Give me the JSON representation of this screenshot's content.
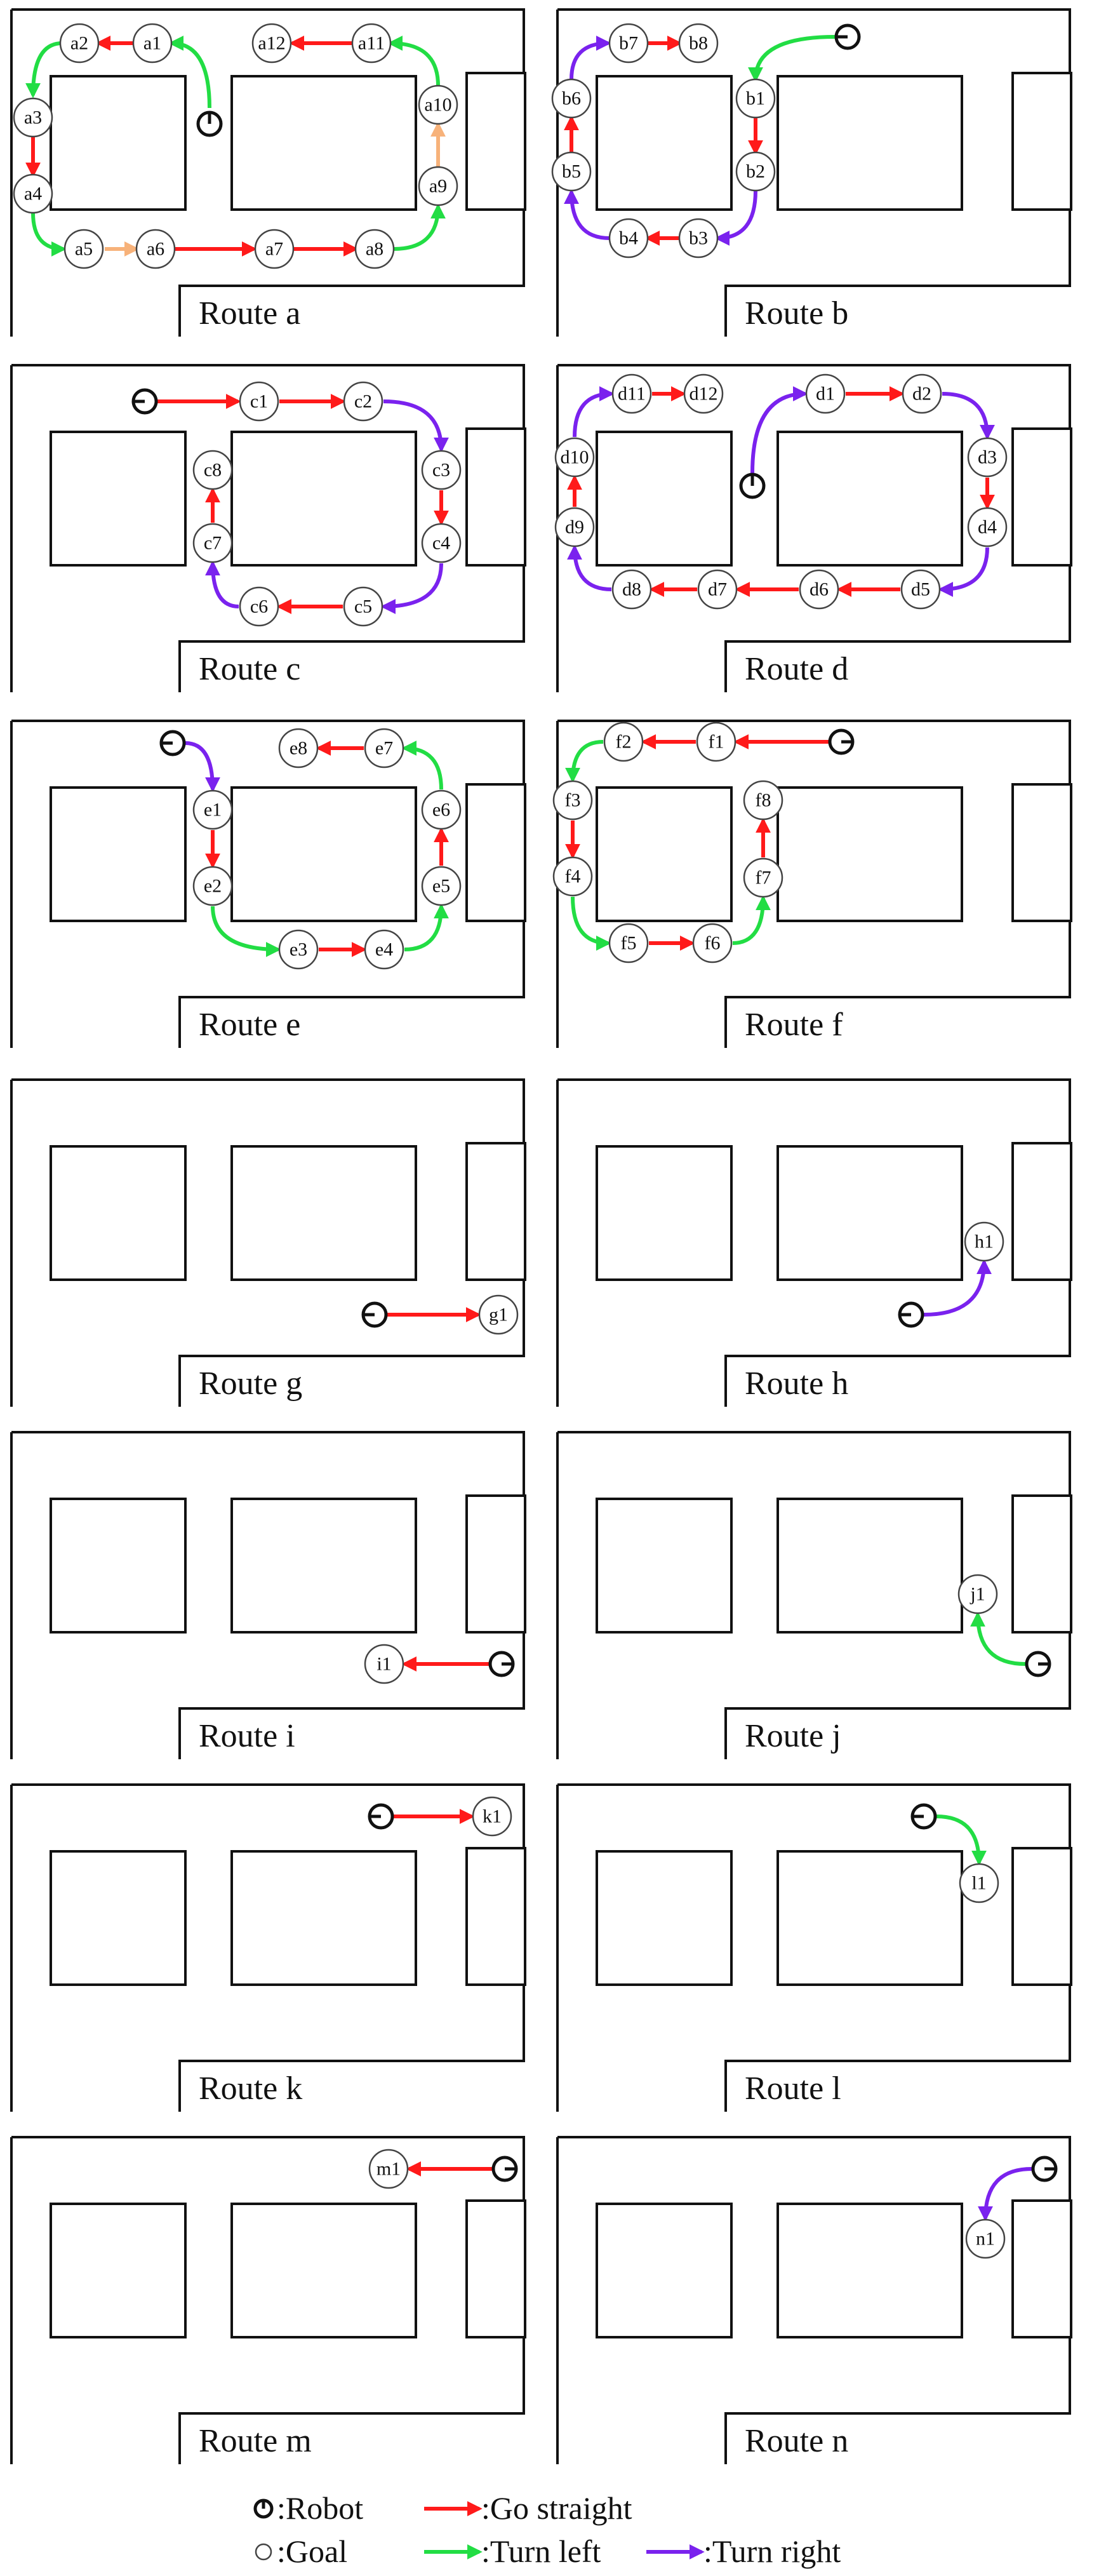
{
  "colors": {
    "go_straight": "#ff1a1a",
    "turn_left": "#22dd44",
    "turn_right": "#7a22ee",
    "alternate": "#f7b27a"
  },
  "legend": {
    "robot": ":Robot",
    "goal": ":Goal",
    "go_straight": ":Go straight",
    "turn_left": ":Turn left",
    "turn_right": ":Turn right"
  },
  "routes": [
    {
      "id": "a",
      "label": "Route a",
      "goals": [
        "a1",
        "a2",
        "a3",
        "a4",
        "a5",
        "a6",
        "a7",
        "a8",
        "a9",
        "a10",
        "a11",
        "a12"
      ]
    },
    {
      "id": "b",
      "label": "Route b",
      "goals": [
        "b1",
        "b2",
        "b3",
        "b4",
        "b5",
        "b6",
        "b7",
        "b8"
      ]
    },
    {
      "id": "c",
      "label": "Route c",
      "goals": [
        "c1",
        "c2",
        "c3",
        "c4",
        "c5",
        "c6",
        "c7",
        "c8"
      ]
    },
    {
      "id": "d",
      "label": "Route d",
      "goals": [
        "d1",
        "d2",
        "d3",
        "d4",
        "d5",
        "d6",
        "d7",
        "d8",
        "d9",
        "d10",
        "d11",
        "d12"
      ]
    },
    {
      "id": "e",
      "label": "Route e",
      "goals": [
        "e1",
        "e2",
        "e3",
        "e4",
        "e5",
        "e6",
        "e7",
        "e8"
      ]
    },
    {
      "id": "f",
      "label": "Route f",
      "goals": [
        "f1",
        "f2",
        "f3",
        "f4",
        "f5",
        "f6",
        "f7",
        "f8"
      ]
    },
    {
      "id": "g",
      "label": "Route g",
      "goals": [
        "g1"
      ]
    },
    {
      "id": "h",
      "label": "Route h",
      "goals": [
        "h1"
      ]
    },
    {
      "id": "i",
      "label": "Route i",
      "goals": [
        "i1"
      ]
    },
    {
      "id": "j",
      "label": "Route j",
      "goals": [
        "j1"
      ]
    },
    {
      "id": "k",
      "label": "Route k",
      "goals": [
        "k1"
      ]
    },
    {
      "id": "l",
      "label": "Route l",
      "goals": [
        "l1"
      ]
    },
    {
      "id": "m",
      "label": "Route m",
      "goals": [
        "m1"
      ]
    },
    {
      "id": "n",
      "label": "Route n",
      "goals": [
        "n1"
      ]
    }
  ]
}
